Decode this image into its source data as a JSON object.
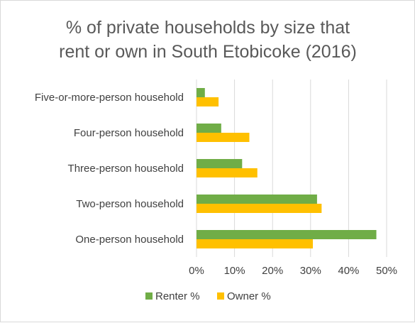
{
  "chart_data": {
    "type": "bar",
    "orientation": "horizontal",
    "title_lines": [
      "% of private households by size that",
      "rent or own in South Etobicoke (2016)"
    ],
    "categories": [
      "Five-or-more-person household",
      "Four-person household",
      "Three-person household",
      "Two-person household",
      "One-person household"
    ],
    "series": [
      {
        "name": "Renter %",
        "color": "#70ad47",
        "values": [
          2.2,
          6.5,
          12.0,
          31.7,
          47.3
        ]
      },
      {
        "name": "Owner %",
        "color": "#ffc000",
        "values": [
          5.8,
          13.9,
          16.0,
          32.9,
          30.6
        ]
      }
    ],
    "xlim": [
      0,
      50
    ],
    "xticks": [
      0,
      10,
      20,
      30,
      40,
      50
    ],
    "tick_format": "percent",
    "grid": true,
    "legend_position": "bottom"
  }
}
